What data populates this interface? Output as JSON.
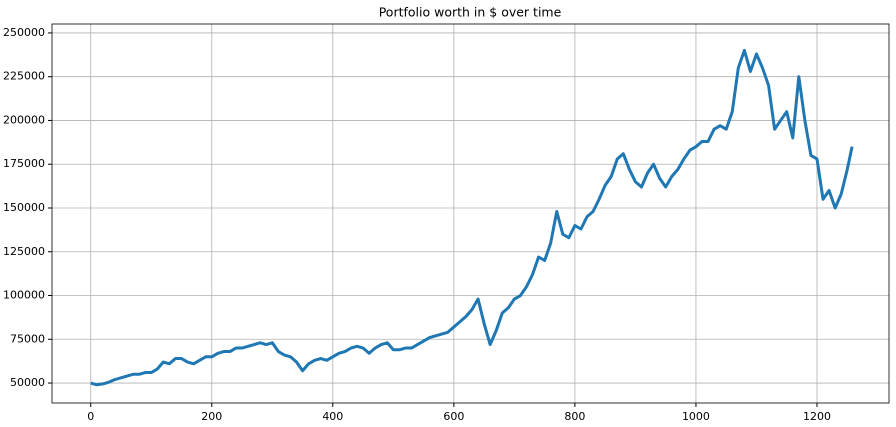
{
  "chart_data": {
    "type": "line",
    "title": "Portfolio worth in $ over time",
    "x": [
      0,
      10,
      20,
      30,
      40,
      50,
      60,
      70,
      80,
      90,
      100,
      110,
      120,
      130,
      140,
      150,
      160,
      170,
      180,
      190,
      200,
      210,
      220,
      230,
      240,
      250,
      260,
      270,
      280,
      290,
      300,
      310,
      320,
      330,
      340,
      350,
      360,
      370,
      380,
      390,
      400,
      410,
      420,
      430,
      440,
      450,
      460,
      470,
      480,
      490,
      500,
      510,
      520,
      530,
      540,
      550,
      560,
      570,
      580,
      590,
      600,
      610,
      620,
      630,
      640,
      650,
      660,
      670,
      680,
      690,
      700,
      710,
      720,
      730,
      740,
      750,
      760,
      770,
      780,
      790,
      800,
      810,
      820,
      830,
      840,
      850,
      860,
      870,
      880,
      890,
      900,
      910,
      920,
      930,
      940,
      950,
      960,
      970,
      980,
      990,
      1000,
      1010,
      1020,
      1030,
      1040,
      1050,
      1060,
      1070,
      1080,
      1090,
      1100,
      1110,
      1120,
      1130,
      1140,
      1150,
      1160,
      1170,
      1180,
      1190,
      1200,
      1210,
      1220,
      1230,
      1240,
      1250,
      1258
    ],
    "series": [
      {
        "name": "Portfolio",
        "color": "#1f77b4",
        "values": [
          50000,
          49000,
          49500,
          50500,
          52000,
          53000,
          54000,
          55000,
          55000,
          56000,
          56000,
          58000,
          62000,
          61000,
          64000,
          64000,
          62000,
          61000,
          63000,
          65000,
          65000,
          67000,
          68000,
          68000,
          70000,
          70000,
          71000,
          72000,
          73000,
          72000,
          73000,
          68000,
          66000,
          65000,
          62000,
          57000,
          61000,
          63000,
          64000,
          63000,
          65000,
          67000,
          68000,
          70000,
          71000,
          70000,
          67000,
          70000,
          72000,
          73000,
          69000,
          69000,
          70000,
          70000,
          72000,
          74000,
          76000,
          77000,
          78000,
          79000,
          82000,
          85000,
          88000,
          92000,
          98000,
          84000,
          72000,
          80000,
          90000,
          93000,
          98000,
          100000,
          105000,
          112000,
          122000,
          120000,
          130000,
          148000,
          135000,
          133000,
          140000,
          138000,
          145000,
          148000,
          155000,
          163000,
          168000,
          178000,
          181000,
          172000,
          165000,
          162000,
          170000,
          175000,
          167000,
          162000,
          168000,
          172000,
          178000,
          183000,
          185000,
          188000,
          188000,
          195000,
          197000,
          195000,
          205000,
          230000,
          240000,
          228000,
          238000,
          230000,
          220000,
          195000,
          200000,
          205000,
          190000,
          225000,
          200000,
          180000,
          178000,
          155000,
          160000,
          150000,
          158000,
          172000,
          185000
        ]
      }
    ],
    "xlim": [
      -64,
      1319
    ],
    "ylim": [
      38600,
      255100
    ],
    "xticks": [
      0,
      200,
      400,
      600,
      800,
      1000,
      1200
    ],
    "yticks": [
      50000,
      75000,
      100000,
      125000,
      150000,
      175000,
      200000,
      225000,
      250000
    ],
    "grid": true
  }
}
